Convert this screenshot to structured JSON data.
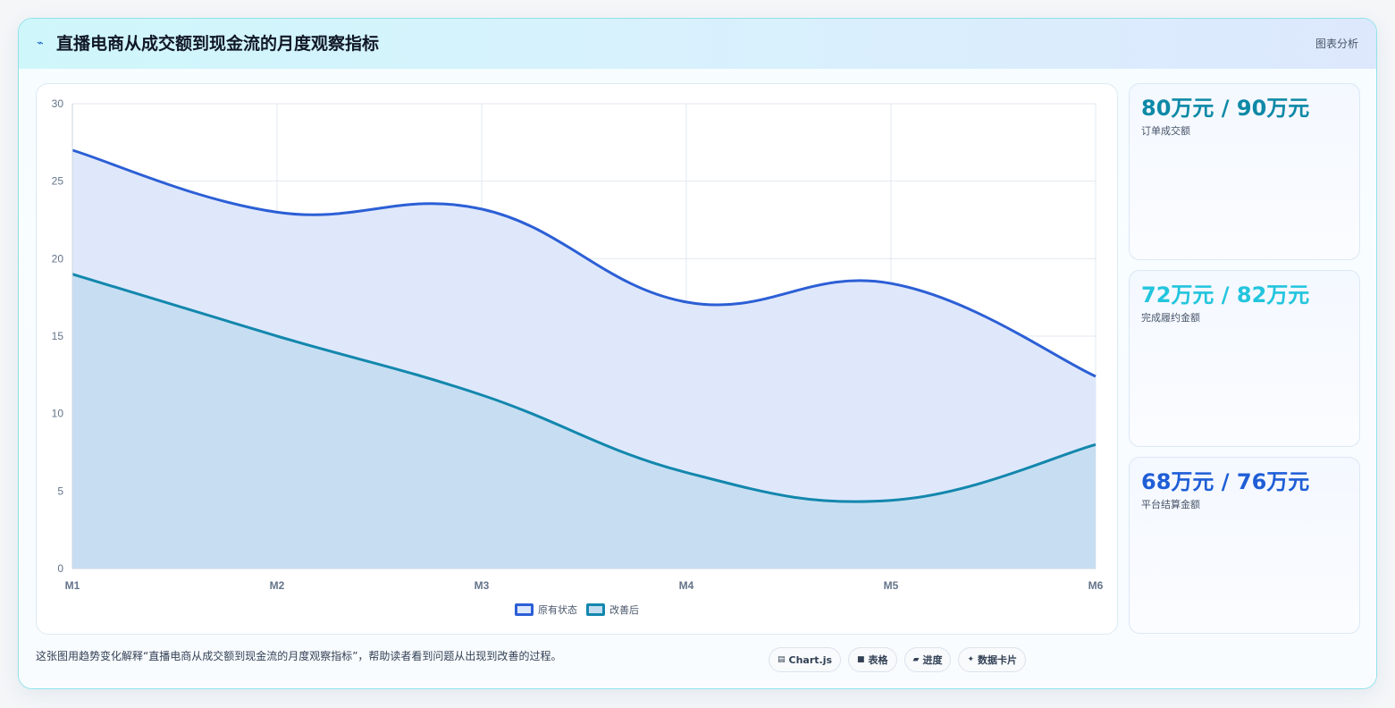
{
  "header": {
    "icon": "lightning-icon",
    "title": "直播电商从成交额到现金流的月度观察指标",
    "tag": "图表分析"
  },
  "chart_data": {
    "type": "area",
    "x": [
      "M1",
      "M2",
      "M3",
      "M4",
      "M5",
      "M6"
    ],
    "ylim": [
      0,
      30
    ],
    "yticks": [
      0,
      5,
      10,
      15,
      20,
      25,
      30
    ],
    "grid": true,
    "legend_position": "bottom",
    "series": [
      {
        "name": "原有状态",
        "values": [
          27,
          23,
          23.2,
          17.2,
          18.4,
          12.4
        ],
        "color": "#2c5fd6",
        "fill": "#dde7fb"
      },
      {
        "name": "改善后",
        "values": [
          19,
          15,
          11.2,
          6.2,
          4.4,
          8
        ],
        "color": "#1387ad",
        "fill": "#c3dcf0"
      }
    ]
  },
  "kpis": [
    {
      "value": "80万元 / 90万元",
      "label": "订单成交额",
      "color": "#0e89a6"
    },
    {
      "value": "72万元 / 82万元",
      "label": "完成履约金额",
      "color": "#22c5dd"
    },
    {
      "value": "68万元 / 76万元",
      "label": "平台结算金额",
      "color": "#1f5ed6"
    }
  ],
  "footer": {
    "note": "这张图用趋势变化解释“直播电商从成交额到现金流的月度观察指标”，帮助读者看到问题从出现到改善的过程。",
    "chips": [
      {
        "icon": "chart-icon",
        "glyph": "▤",
        "label": "Chart.js"
      },
      {
        "icon": "table-icon",
        "glyph": "■",
        "label": "表格"
      },
      {
        "icon": "progress-icon",
        "glyph": "▰",
        "label": "进度"
      },
      {
        "icon": "sparkle-icon",
        "glyph": "✦",
        "label": "数据卡片"
      }
    ]
  }
}
